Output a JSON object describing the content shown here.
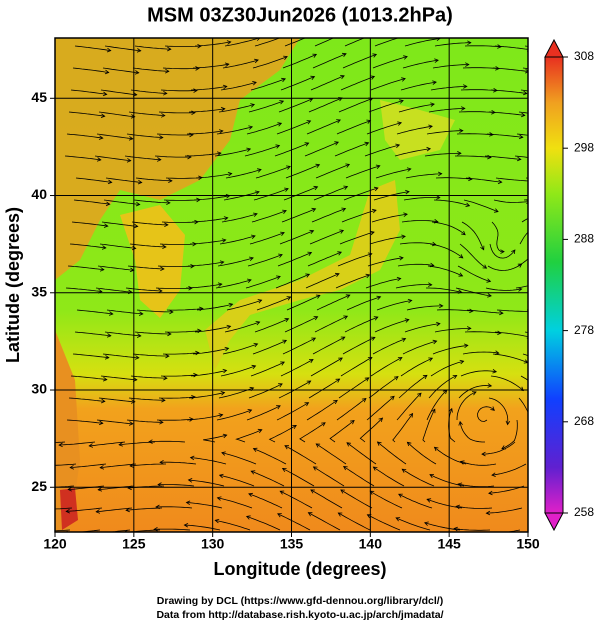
{
  "chart_data": {
    "type": "map",
    "title": "MSM 03Z30Jun2026 (1013.2hPa)",
    "x_label": "Longitude (degrees)",
    "y_label": "Latitude  (degrees)",
    "xlim": [
      120,
      150
    ],
    "xticks": [
      120,
      125,
      130,
      135,
      140,
      145,
      150
    ],
    "ylim": [
      22.7,
      48.1
    ],
    "yticks": [
      25,
      30,
      35,
      40,
      45
    ],
    "grid": true,
    "colorbar": {
      "lim": [
        258,
        308
      ],
      "ticks": [
        258,
        268,
        278,
        288,
        298,
        308
      ]
    }
  },
  "footer": {
    "lines": [
      "Drawing by DCL (https://www.gfd-dennou.org/library/dcl/)",
      "Data from http://database.rish.kyoto-u.ac.jp/arch/jmadata/"
    ]
  }
}
